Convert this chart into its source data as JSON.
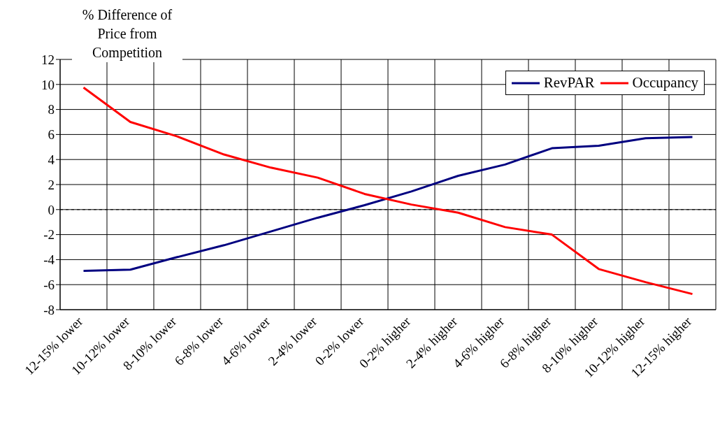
{
  "chart_data": {
    "type": "line",
    "ylabel": "% Difference of Price from Competition",
    "categories": [
      "12-15% lower",
      "10-12% lower",
      "8-10% lower",
      "6-8% lower",
      "4-6% lower",
      "2-4% lower",
      "0-2% lower",
      "0-2% higher",
      "2-4% higher",
      "4-6% higher",
      "6-8% higher",
      "8-10% higher",
      "10-12% higher",
      "12-15% higher"
    ],
    "series": [
      {
        "name": "RevPAR",
        "color": "#000080",
        "values": [
          -4.9,
          -4.8,
          -3.8,
          -2.85,
          -1.75,
          -0.65,
          0.35,
          1.45,
          2.7,
          3.6,
          4.9,
          5.1,
          5.7,
          5.8
        ]
      },
      {
        "name": "Occupancy",
        "color": "#ff0000",
        "values": [
          9.75,
          7.0,
          5.85,
          4.4,
          3.35,
          2.55,
          1.25,
          0.4,
          -0.25,
          -1.4,
          -2.0,
          -4.75,
          -5.8,
          -6.75
        ]
      }
    ],
    "ylim": [
      -8,
      12
    ],
    "yticks": [
      -8,
      -6,
      -4,
      -2,
      0,
      2,
      4,
      6,
      8,
      10,
      12
    ],
    "ref_lines": [
      {
        "axis": "y",
        "value": 0,
        "color": "#000000",
        "line_style": "dashed"
      }
    ],
    "grid": true,
    "legend": "top right",
    "marker": "none",
    "line_style": "solid"
  }
}
